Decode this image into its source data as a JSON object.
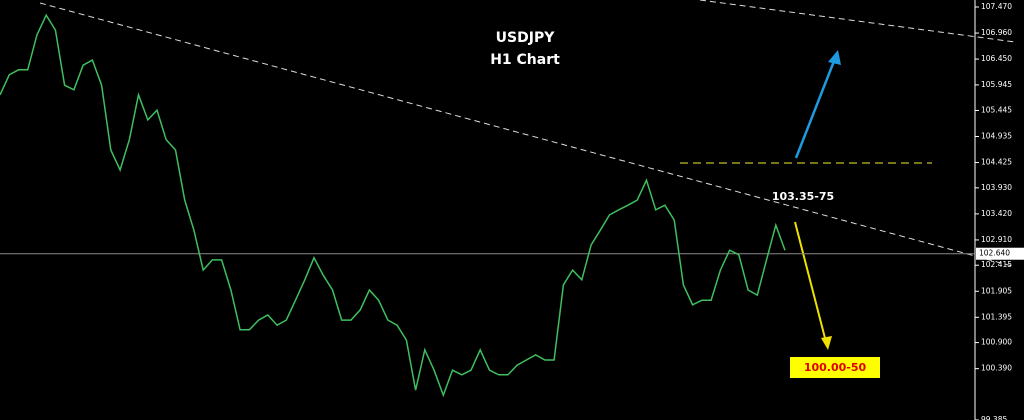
{
  "chart_data": {
    "type": "line",
    "title": "USDJPY",
    "subtitle": "H1 Chart",
    "series": [
      {
        "color": "#3fbf5f",
        "values": [
          105.75,
          106.14,
          106.24,
          106.24,
          106.92,
          107.31,
          107.02,
          105.94,
          105.85,
          106.33,
          106.43,
          105.94,
          104.67,
          104.28,
          104.87,
          105.75,
          105.26,
          105.45,
          104.87,
          104.67,
          103.69,
          103.1,
          102.32,
          102.52,
          102.52,
          101.93,
          101.15,
          101.15,
          101.34,
          101.44,
          101.24,
          101.34,
          101.73,
          102.13,
          102.56,
          102.22,
          101.93,
          101.34,
          101.34,
          101.54,
          101.93,
          101.73,
          101.34,
          101.24,
          100.95,
          99.97,
          100.76,
          100.36,
          99.87,
          100.36,
          100.27,
          100.36,
          100.76,
          100.36,
          100.27,
          100.27,
          100.46,
          100.56,
          100.66,
          100.56,
          100.56,
          102.03,
          102.32,
          102.13,
          102.81,
          103.1,
          103.4,
          103.5,
          103.59,
          103.69,
          104.08,
          103.5,
          103.59,
          103.3,
          102.03,
          101.64,
          101.73,
          101.73,
          102.32,
          102.71,
          102.62,
          101.93,
          101.83,
          102.52,
          103.2,
          102.71
        ]
      }
    ],
    "current_price": {
      "value": 102.64,
      "label": "102.640"
    },
    "annotations": {
      "upper_target": "103.35-75",
      "lower_target": "100.00-50"
    },
    "ylim": [
      99.385,
      107.607
    ],
    "yticks": [
      {
        "value": 107.47,
        "label": "107.470"
      },
      {
        "value": 106.96,
        "label": "106.960"
      },
      {
        "value": 106.45,
        "label": "106.450"
      },
      {
        "value": 105.945,
        "label": "105.945"
      },
      {
        "value": 105.445,
        "label": "105.445"
      },
      {
        "value": 104.935,
        "label": "104.935"
      },
      {
        "value": 104.425,
        "label": "104.425"
      },
      {
        "value": 103.93,
        "label": "103.930"
      },
      {
        "value": 103.42,
        "label": "103.420"
      },
      {
        "value": 102.91,
        "label": "102.910"
      },
      {
        "value": 102.415,
        "label": "102.415"
      },
      {
        "value": 101.905,
        "label": "101.905"
      },
      {
        "value": 101.395,
        "label": "101.395"
      },
      {
        "value": 100.9,
        "label": "100.900"
      },
      {
        "value": 100.39,
        "label": "100.390"
      },
      {
        "value": 99.385,
        "label": "99.385"
      }
    ],
    "grid": false
  }
}
